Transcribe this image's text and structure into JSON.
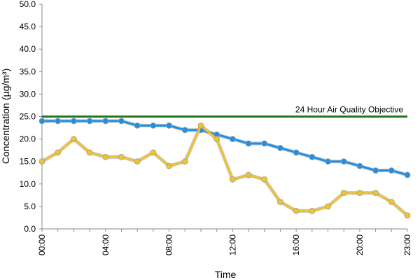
{
  "chart_data": {
    "type": "line",
    "xlabel": "Time",
    "ylabel": "Concentration (µg/m³)",
    "ylim": [
      0,
      50
    ],
    "yticks": [
      "0.0",
      "5.0",
      "10.0",
      "15.0",
      "20.0",
      "25.0",
      "30.0",
      "35.0",
      "40.0",
      "45.0",
      "50.0"
    ],
    "x": [
      "00:00",
      "01:00",
      "02:00",
      "03:00",
      "04:00",
      "05:00",
      "06:00",
      "07:00",
      "08:00",
      "09:00",
      "10:00",
      "11:00",
      "12:00",
      "13:00",
      "14:00",
      "15:00",
      "16:00",
      "17:00",
      "18:00",
      "19:00",
      "20:00",
      "21:00",
      "22:00",
      "23:00"
    ],
    "xtick_labels": [
      "00:00",
      "04:00",
      "08:00",
      "12:00",
      "16:00",
      "20:00",
      "23:00"
    ],
    "grid": false,
    "series": [
      {
        "color": "#1e90e8",
        "values": [
          24,
          24,
          24,
          24,
          24,
          24,
          23,
          23,
          23,
          22,
          22,
          21,
          20,
          19,
          19,
          18,
          17,
          16,
          15,
          15,
          14,
          13,
          13,
          12
        ]
      },
      {
        "color": "#f0c430",
        "values": [
          15,
          17,
          20,
          17,
          16,
          16,
          15,
          17,
          14,
          15,
          23,
          20,
          11,
          12,
          11,
          6,
          4,
          4,
          5,
          8,
          8,
          8,
          6,
          3
        ]
      }
    ],
    "reference_line": {
      "value": 25,
      "label": "24 Hour Air Quality Objective",
      "color": "#1f7a1f"
    }
  }
}
